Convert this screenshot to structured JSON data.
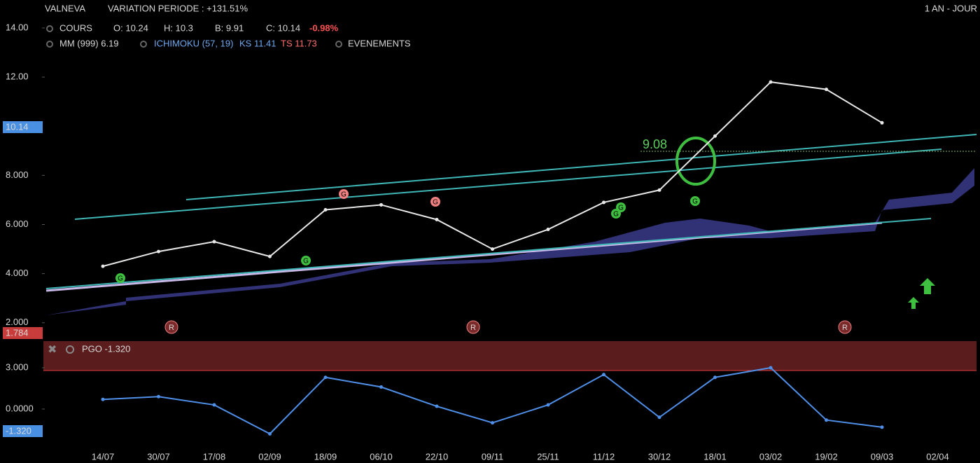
{
  "header": {
    "symbol": "VALNEVA",
    "variation": "VARIATION PERIODE : +131.51%",
    "period": "1 AN - JOUR",
    "cours": "COURS",
    "open": "O: 10.24",
    "high": "H: 10.3",
    "low": "B: 9.91",
    "close": "C: 10.14",
    "change": "-0.98%",
    "mm": "MM (999) 6.19",
    "ichimoku": "ICHIMOKU (57, 19)",
    "ks": "KS 11.41",
    "ts": "TS 11.73",
    "events": "EVENEMENTS",
    "price_marker": "10.14",
    "left_marker": "1.784",
    "annotation": "9.08",
    "pgo": "PGO -1.320",
    "pgo_marker": "-1.320",
    "signals": [
      "G",
      "G",
      "G",
      "G",
      "G",
      "G",
      "G"
    ],
    "events_list": [
      "R",
      "R",
      "R"
    ]
  },
  "chart_data": [
    {
      "type": "line",
      "color": "#e8e8e8",
      "categories": [
        "14/07",
        "30/07",
        "17/08",
        "02/09",
        "18/09",
        "06/10",
        "22/10",
        "09/11",
        "25/11",
        "11/12",
        "30/12",
        "18/01",
        "03/02",
        "19/02",
        "09/03",
        "02/04"
      ],
      "values": [
        4.3,
        4.9,
        5.3,
        4.7,
        6.6,
        6.8,
        6.2,
        5.0,
        5.8,
        6.9,
        7.4,
        9.6,
        11.8,
        11.5,
        10.14,
        null
      ],
      "ylim": [
        1.31,
        14.34
      ],
      "yticks": [
        {
          "value": 2,
          "label": "2.000"
        },
        {
          "value": 4,
          "label": "4.000"
        },
        {
          "value": 6,
          "label": "6.000"
        },
        {
          "value": 8,
          "label": "8.000"
        },
        {
          "value": 12,
          "label": "12.00"
        },
        {
          "value": 14,
          "label": "14.00"
        }
      ],
      "grid": false
    },
    {
      "type": "line",
      "color": "#4f8fe8",
      "values": [
        0.7,
        0.9,
        0.3,
        -1.8,
        2.3,
        1.6,
        0.2,
        -1.0,
        0.3,
        2.5,
        -0.6,
        2.3,
        3.0,
        -0.8,
        -1.32,
        null
      ],
      "ylim": [
        -2.85,
        4.88
      ],
      "yticks": [
        {
          "value": 3,
          "label": "3.000"
        },
        {
          "value": 0,
          "label": "0.0000"
        }
      ],
      "grid": false
    }
  ]
}
